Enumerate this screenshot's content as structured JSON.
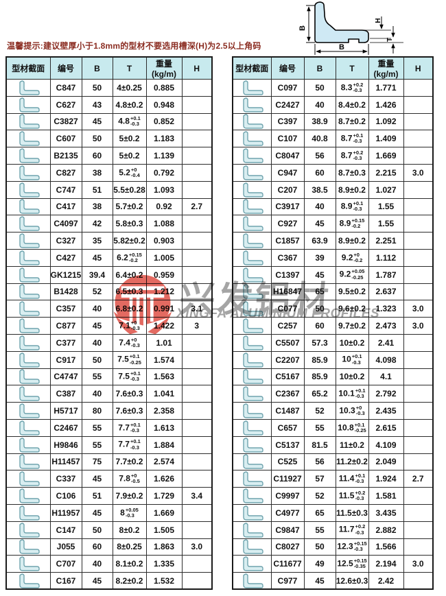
{
  "tip": "温馨提示:建议壁厚小于1.8mm的型材不要选用槽深(H)为2.5以上角码",
  "diagram": {
    "labels": {
      "b_left": "B",
      "b_bottom": "B",
      "h": "H",
      "t": "T"
    },
    "fill_color": "#cfe9f4"
  },
  "watermark": {
    "logo_icon": "xingfa-logo",
    "cn_text": "兴发铝材",
    "en_text": "XINGFA ALUMINIUM PROFILES",
    "logo_color": "#df5046",
    "text_color": "#a5a5a5"
  },
  "table_headers": [
    "型材截面",
    "编号",
    "B",
    "T",
    "重量(kg/m)",
    "H"
  ],
  "columns_key": [
    "code",
    "B",
    "T_main",
    "T_plus_tol",
    "T_minus_tol",
    "weight_kg_m",
    "H"
  ],
  "header_bg": "#c8eaee",
  "profile_icon": "l-profile-icon",
  "tables": {
    "left": {
      "rows": [
        [
          "C847",
          "50",
          "4±0.25",
          "",
          "",
          "0.885",
          ""
        ],
        [
          "C627",
          "43",
          "4.8±0.2",
          "",
          "",
          "0.948",
          ""
        ],
        [
          "C3827",
          "45",
          "4.8",
          "+0.1",
          "-0.3",
          "0.852",
          ""
        ],
        [
          "C607",
          "50",
          "5±0.2",
          "",
          "",
          "1.183",
          ""
        ],
        [
          "B2135",
          "60",
          "5±0.2",
          "",
          "",
          "1.139",
          ""
        ],
        [
          "C827",
          "38",
          "5.2",
          "+0",
          "-0.4",
          "0.792",
          ""
        ],
        [
          "C747",
          "51",
          "5.5±0.28",
          "",
          "",
          "1.093",
          ""
        ],
        [
          "C417",
          "38",
          "5.7±0.2",
          "",
          "",
          "0.92",
          "2.7"
        ],
        [
          "C4097",
          "42",
          "5.8±0.3",
          "",
          "",
          "1.088",
          ""
        ],
        [
          "C327",
          "35",
          "5.82±0.2",
          "",
          "",
          "0.903",
          ""
        ],
        [
          "C427",
          "45",
          "6.2",
          "+0.15",
          "-0.2",
          "1.005",
          ""
        ],
        [
          "GK1215",
          "39.4",
          "6.4±0.2",
          "",
          "",
          "0.959",
          ""
        ],
        [
          "B1428",
          "52",
          "6.5±0.3",
          "",
          "",
          "1.212",
          ""
        ],
        [
          "C357",
          "40",
          "6.8±0.2",
          "",
          "",
          "0.991",
          "3.1"
        ],
        [
          "C877",
          "45",
          "7.1",
          "+0",
          "-0.3",
          "1.422",
          "3"
        ],
        [
          "C377",
          "40",
          "7.4",
          "+0",
          "-0.3",
          "1.01",
          ""
        ],
        [
          "C917",
          "50",
          "7.5",
          "+0.1",
          "-0.25",
          "1.574",
          ""
        ],
        [
          "C4747",
          "55",
          "7.5",
          "+0.1",
          "-0.3",
          "1.563",
          ""
        ],
        [
          "C387",
          "40",
          "7.6±0.3",
          "",
          "",
          "1.041",
          ""
        ],
        [
          "H5717",
          "80",
          "7.6±0.3",
          "",
          "",
          "2.358",
          ""
        ],
        [
          "C2467",
          "55",
          "7.7",
          "+0.1",
          "-0.3",
          "1.613",
          ""
        ],
        [
          "H9846",
          "55",
          "7.7",
          "+0.1",
          "-0.3",
          "1.884",
          ""
        ],
        [
          "H11457",
          "75",
          "7.7±0.2",
          "",
          "",
          "2.574",
          ""
        ],
        [
          "C337",
          "45",
          "7.8",
          "+0",
          "-0.5",
          "1.626",
          ""
        ],
        [
          "C106",
          "51",
          "7.9±0.2",
          "",
          "",
          "1.729",
          "3.4"
        ],
        [
          "H11957",
          "45",
          "8",
          "+0.05",
          "-0.3",
          "1.669",
          ""
        ],
        [
          "C147",
          "50",
          "8±0.2",
          "",
          "",
          "1.505",
          ""
        ],
        [
          "J055",
          "60",
          "8±0.25",
          "",
          "",
          "1.863",
          "3.0"
        ],
        [
          "C707",
          "40",
          "8.1±0.2",
          "",
          "",
          "1.335",
          ""
        ],
        [
          "C167",
          "45",
          "8.2±0.2",
          "",
          "",
          "1.532",
          ""
        ]
      ]
    },
    "right": {
      "rows": [
        [
          "C097",
          "50",
          "8.3",
          "+0.2",
          "-0.3",
          "1.771",
          ""
        ],
        [
          "C2427",
          "40",
          "8.4±0.2",
          "",
          "",
          "1.426",
          ""
        ],
        [
          "C397",
          "38.9",
          "8.7±0.2",
          "",
          "",
          "1.092",
          ""
        ],
        [
          "C107",
          "40.8",
          "8.7",
          "+0.1",
          "-0.3",
          "1.409",
          ""
        ],
        [
          "C8047",
          "56",
          "8.7",
          "+0.2",
          "-0.3",
          "1.669",
          ""
        ],
        [
          "C947",
          "60",
          "8.7±0.3",
          "",
          "",
          "2.215",
          "3.0"
        ],
        [
          "C207",
          "38.5",
          "8.9±0.2",
          "",
          "",
          "1.027",
          ""
        ],
        [
          "C3917",
          "40",
          "8.9",
          "+0.1",
          "-0.3",
          "1.55",
          ""
        ],
        [
          "C927",
          "45",
          "8.9",
          "+0.15",
          "-0.2",
          "1.55",
          ""
        ],
        [
          "C1857",
          "63.9",
          "8.9±0.2",
          "",
          "",
          "2.251",
          ""
        ],
        [
          "C367",
          "39",
          "9.2",
          "+0",
          "-0.2",
          "1.112",
          ""
        ],
        [
          "C1397",
          "45",
          "9.2",
          "+0.05",
          "-0.25",
          "1.787",
          ""
        ],
        [
          "H16847",
          "65",
          "9.5±0.2",
          "",
          "",
          "2.637",
          ""
        ],
        [
          "C077",
          "50",
          "9.6±0.2",
          "",
          "",
          "1.323",
          "3.0"
        ],
        [
          "C257",
          "60",
          "9.7±0.2",
          "",
          "",
          "2.473",
          "3.0"
        ],
        [
          "C5507",
          "57.3",
          "10±0.2",
          "",
          "",
          "2.41",
          ""
        ],
        [
          "C2207",
          "85.9",
          "10",
          "+0.1",
          "-0.3",
          "4.098",
          ""
        ],
        [
          "C5167",
          "85.9",
          "10±0.2",
          "",
          "",
          "4.1",
          ""
        ],
        [
          "C2367",
          "65.2",
          "10.1",
          "+0.1",
          "-0.3",
          "2.792",
          ""
        ],
        [
          "C1487",
          "52",
          "10.3",
          "+0",
          "-0.3",
          "2.435",
          ""
        ],
        [
          "C657",
          "55",
          "10.8",
          "+0.1",
          "-0.25",
          "2.615",
          ""
        ],
        [
          "C5137",
          "81.5",
          "11±0.2",
          "",
          "",
          "4.109",
          ""
        ],
        [
          "C525",
          "56",
          "11.2±0.2",
          "",
          "",
          "2.049",
          ""
        ],
        [
          "C11927",
          "57",
          "11.4",
          "+0.1",
          "-0.3",
          "1.924",
          "2.7"
        ],
        [
          "C9997",
          "52",
          "11.5",
          "+0.2",
          "-0.3",
          "1.581",
          ""
        ],
        [
          "C4977",
          "65",
          "11.5±0.3",
          "",
          "",
          "3.435",
          ""
        ],
        [
          "C9847",
          "55",
          "11.7",
          "+0.2",
          "-0.3",
          "2.882",
          ""
        ],
        [
          "C8027",
          "50",
          "12.3",
          "+0.15",
          "-0.3",
          "1.566",
          ""
        ],
        [
          "C11677",
          "49",
          "12.5",
          "+0.15",
          "-0.35",
          "2.194",
          "3.0"
        ],
        [
          "C977",
          "45",
          "12.6±0.3",
          "",
          "",
          "2.42",
          ""
        ]
      ]
    }
  }
}
